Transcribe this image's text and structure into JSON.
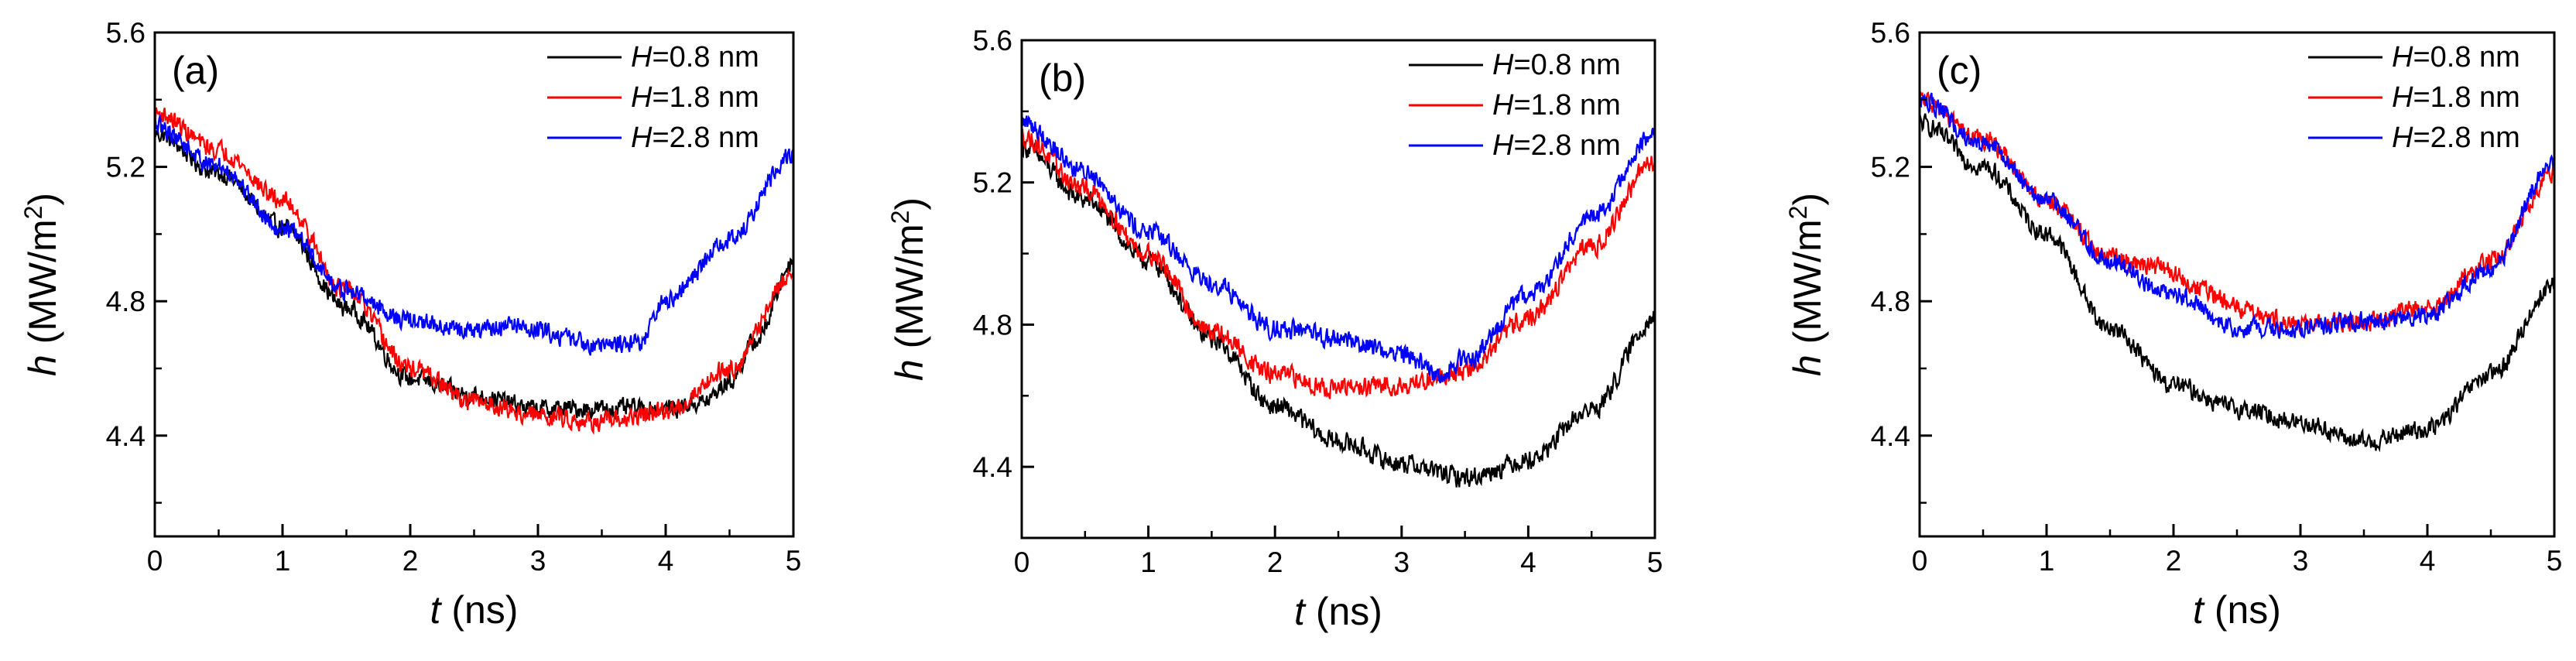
{
  "figure": {
    "description_free": true
  },
  "chart_data": [
    {
      "type": "line",
      "panel_label": "(a)",
      "xlabel": "t (ns)",
      "xlabel_var": "t",
      "xlabel_unit": " (ns)",
      "ylabel_var": "h",
      "ylabel_unit": " (MW/m",
      "ylabel_sup": "2",
      "ylabel_close": ")",
      "xlim": [
        0,
        5
      ],
      "ylim": [
        4.1,
        5.6
      ],
      "xticks": [
        0,
        1,
        2,
        3,
        4,
        5
      ],
      "yticks": [
        4.4,
        4.8,
        5.2,
        5.6
      ],
      "ytick_labels": [
        "4.4",
        "4.8",
        "5.2",
        "5.6"
      ],
      "legend": "top-right",
      "series": [
        {
          "name_var": "H",
          "name_rest": "=0.8 nm",
          "color": "#000000",
          "x": [
            0,
            0.5,
            1,
            1.5,
            2,
            2.5,
            3,
            3.5,
            4,
            4.3,
            4.5,
            4.7,
            5
          ],
          "y": [
            5.3,
            5.18,
            5.02,
            4.78,
            4.57,
            4.52,
            4.48,
            4.48,
            4.48,
            4.5,
            4.56,
            4.68,
            4.92
          ]
        },
        {
          "name_var": "H",
          "name_rest": "=1.8 nm",
          "color": "#ff0000",
          "x": [
            0,
            0.5,
            1,
            1.5,
            2,
            2.5,
            3,
            3.5,
            4,
            4.5,
            5
          ],
          "y": [
            5.36,
            5.25,
            5.1,
            4.83,
            4.6,
            4.5,
            4.46,
            4.44,
            4.47,
            4.6,
            4.88
          ]
        },
        {
          "name_var": "H",
          "name_rest": "=2.8 nm",
          "color": "#0000ff",
          "x": [
            0,
            0.5,
            1,
            1.5,
            2,
            2.5,
            2.8,
            3,
            3.5,
            3.8,
            4,
            4.5,
            5
          ],
          "y": [
            5.32,
            5.2,
            5.02,
            4.83,
            4.74,
            4.71,
            4.73,
            4.71,
            4.67,
            4.68,
            4.8,
            4.98,
            5.24
          ]
        }
      ]
    },
    {
      "type": "line",
      "panel_label": "(b)",
      "xlabel": "t (ns)",
      "xlabel_var": "t",
      "xlabel_unit": " (ns)",
      "ylabel_var": "h",
      "ylabel_unit": " (MW/m",
      "ylabel_sup": "2",
      "ylabel_close": ")",
      "xlim": [
        0,
        5
      ],
      "ylim": [
        4.2,
        5.6
      ],
      "xticks": [
        0,
        1,
        2,
        3,
        4,
        5
      ],
      "yticks": [
        4.4,
        4.8,
        5.2,
        5.6
      ],
      "ytick_labels": [
        "4.4",
        "4.8",
        "5.2",
        "5.6"
      ],
      "legend": "top-right",
      "series": [
        {
          "name_var": "H",
          "name_rest": "=0.8 nm",
          "color": "#000000",
          "x": [
            0,
            0.5,
            1,
            1.5,
            2,
            2.5,
            3,
            3.5,
            4,
            4.5,
            5
          ],
          "y": [
            5.3,
            5.15,
            4.98,
            4.76,
            4.57,
            4.47,
            4.41,
            4.37,
            4.42,
            4.56,
            4.82
          ]
        },
        {
          "name_var": "H",
          "name_rest": "=1.8 nm",
          "color": "#ff0000",
          "x": [
            0,
            0.5,
            1,
            1.5,
            2,
            2.5,
            3,
            3.5,
            4,
            4.5,
            5
          ],
          "y": [
            5.33,
            5.18,
            5.0,
            4.78,
            4.66,
            4.62,
            4.63,
            4.67,
            4.82,
            5.02,
            5.26
          ]
        },
        {
          "name_var": "H",
          "name_rest": "=2.8 nm",
          "color": "#0000ff",
          "x": [
            0,
            0.5,
            1,
            1.5,
            2,
            2.5,
            3,
            3.3,
            3.5,
            4,
            4.5,
            5
          ],
          "y": [
            5.37,
            5.23,
            5.06,
            4.92,
            4.79,
            4.76,
            4.72,
            4.66,
            4.7,
            4.88,
            5.1,
            5.33
          ]
        }
      ]
    },
    {
      "type": "line",
      "panel_label": "(c)",
      "xlabel": "t (ns)",
      "xlabel_var": "t",
      "xlabel_unit": " (ns)",
      "ylabel_var": "h",
      "ylabel_unit": " (MW/m",
      "ylabel_sup": "2",
      "ylabel_close": ")",
      "xlim": [
        0,
        5
      ],
      "ylim": [
        4.1,
        5.6
      ],
      "xticks": [
        0,
        1,
        2,
        3,
        4,
        5
      ],
      "yticks": [
        4.4,
        4.8,
        5.2,
        5.6
      ],
      "ytick_labels": [
        "4.4",
        "4.8",
        "5.2",
        "5.6"
      ],
      "legend": "top-right",
      "series": [
        {
          "name_var": "H",
          "name_rest": "=0.8 nm",
          "color": "#000000",
          "x": [
            0,
            0.5,
            1,
            1.5,
            2,
            2.5,
            3,
            3.5,
            4,
            4.5,
            5
          ],
          "y": [
            5.33,
            5.2,
            5.0,
            4.72,
            4.55,
            4.48,
            4.44,
            4.38,
            4.42,
            4.58,
            4.85
          ]
        },
        {
          "name_var": "H",
          "name_rest": "=1.8 nm",
          "color": "#ff0000",
          "x": [
            0,
            0.5,
            1,
            1.5,
            1.9,
            2.2,
            2.5,
            3,
            3.5,
            4,
            4.5,
            5
          ],
          "y": [
            5.4,
            5.28,
            5.1,
            4.93,
            4.9,
            4.84,
            4.78,
            4.73,
            4.74,
            4.78,
            4.92,
            5.18
          ]
        },
        {
          "name_var": "H",
          "name_rest": "=2.8 nm",
          "color": "#0000ff",
          "x": [
            0,
            0.5,
            1,
            1.5,
            2,
            2.5,
            3,
            3.5,
            4,
            4.5,
            5
          ],
          "y": [
            5.4,
            5.27,
            5.1,
            4.92,
            4.82,
            4.72,
            4.72,
            4.74,
            4.76,
            4.9,
            5.22
          ]
        }
      ]
    }
  ]
}
